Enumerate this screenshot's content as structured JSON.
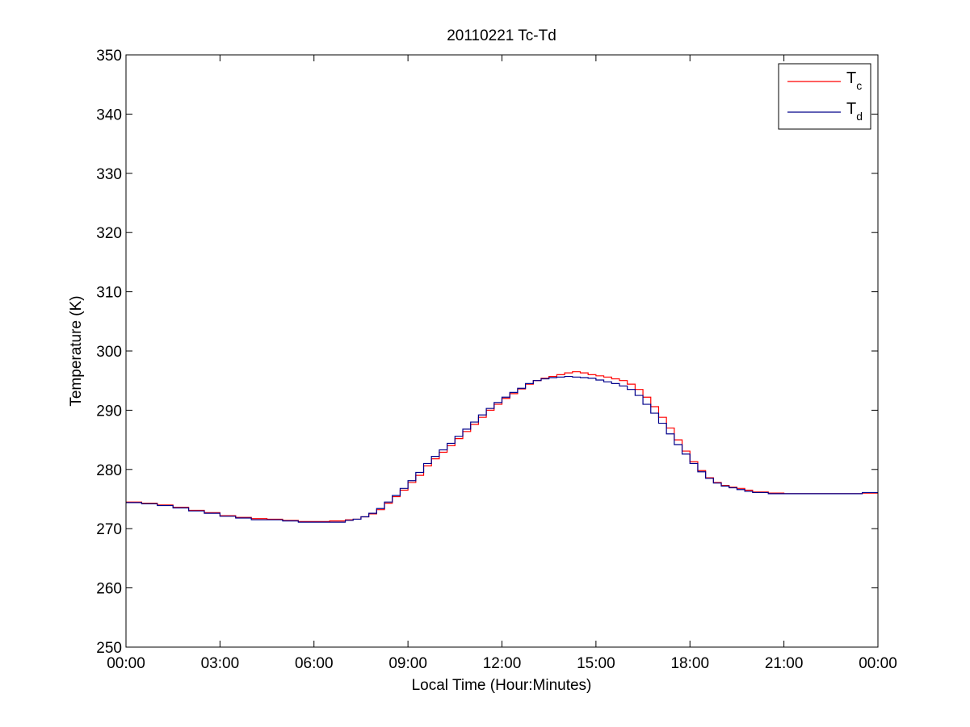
{
  "chart_data": {
    "type": "line",
    "title": "20110221 Tc-Td",
    "xlabel": "Local Time (Hour:Minutes)",
    "ylabel": "Temperature (K)",
    "xlim": [
      0,
      24
    ],
    "ylim": [
      250,
      350
    ],
    "x_ticks": [
      {
        "x": 0,
        "label": "00:00"
      },
      {
        "x": 3,
        "label": "03:00"
      },
      {
        "x": 6,
        "label": "06:00"
      },
      {
        "x": 9,
        "label": "09:00"
      },
      {
        "x": 12,
        "label": "12:00"
      },
      {
        "x": 15,
        "label": "15:00"
      },
      {
        "x": 18,
        "label": "18:00"
      },
      {
        "x": 21,
        "label": "21:00"
      },
      {
        "x": 24,
        "label": "00:00"
      }
    ],
    "y_ticks": [
      250,
      260,
      270,
      280,
      290,
      300,
      310,
      320,
      330,
      340,
      350
    ],
    "grid": false,
    "legend": {
      "placement": "top-right",
      "entries": [
        {
          "main": "T",
          "sub": "c",
          "color": "#ff0000"
        },
        {
          "main": "T",
          "sub": "d",
          "color": "#00008b"
        }
      ]
    },
    "series": [
      {
        "color": "#ff0000",
        "x": [
          0,
          0.5,
          1,
          1.5,
          2,
          2.5,
          3,
          3.5,
          4,
          4.5,
          5,
          5.5,
          6,
          6.5,
          7,
          7.25,
          7.5,
          7.75,
          8,
          8.25,
          8.5,
          8.75,
          9,
          9.25,
          9.5,
          9.75,
          10,
          10.25,
          10.5,
          10.75,
          11,
          11.25,
          11.5,
          11.75,
          12,
          12.25,
          12.5,
          12.75,
          13,
          13.25,
          13.5,
          13.75,
          14,
          14.25,
          14.5,
          14.75,
          15,
          15.25,
          15.5,
          15.75,
          16,
          16.25,
          16.5,
          16.75,
          17,
          17.25,
          17.5,
          17.75,
          18,
          18.25,
          18.5,
          18.75,
          19,
          19.25,
          19.5,
          19.75,
          20,
          20.5,
          21,
          21.5,
          22,
          22.5,
          23,
          23.5,
          24
        ],
        "y": [
          274.5,
          274.3,
          274.0,
          273.6,
          273.1,
          272.7,
          272.2,
          271.9,
          271.7,
          271.6,
          271.4,
          271.2,
          271.2,
          271.3,
          271.5,
          271.6,
          272.0,
          272.5,
          273.2,
          274.3,
          275.4,
          276.5,
          277.8,
          279.0,
          280.6,
          281.8,
          282.9,
          284.0,
          285.2,
          286.4,
          287.6,
          288.8,
          290.0,
          291.0,
          292.0,
          292.8,
          293.6,
          294.4,
          295.0,
          295.4,
          295.7,
          296.0,
          296.3,
          296.5,
          296.3,
          296.0,
          295.8,
          295.6,
          295.3,
          295.0,
          294.4,
          293.5,
          292.2,
          290.6,
          288.8,
          287.0,
          285.0,
          283.1,
          281.3,
          279.8,
          278.6,
          277.8,
          277.3,
          277.0,
          276.8,
          276.5,
          276.2,
          276.0,
          275.9,
          275.9,
          275.9,
          275.9,
          275.9,
          276.0,
          276.0
        ]
      },
      {
        "color": "#00008b",
        "x": [
          0,
          0.5,
          1,
          1.5,
          2,
          2.5,
          3,
          3.5,
          4,
          4.5,
          5,
          5.5,
          6,
          6.5,
          7,
          7.25,
          7.5,
          7.75,
          8,
          8.25,
          8.5,
          8.75,
          9,
          9.25,
          9.5,
          9.75,
          10,
          10.25,
          10.5,
          10.75,
          11,
          11.25,
          11.5,
          11.75,
          12,
          12.25,
          12.5,
          12.75,
          13,
          13.25,
          13.5,
          13.75,
          14,
          14.25,
          14.5,
          14.75,
          15,
          15.25,
          15.5,
          15.75,
          16,
          16.25,
          16.5,
          16.75,
          17,
          17.25,
          17.5,
          17.75,
          18,
          18.25,
          18.5,
          18.75,
          19,
          19.25,
          19.5,
          19.75,
          20,
          20.5,
          21,
          21.5,
          22,
          22.5,
          23,
          23.5,
          24
        ],
        "y": [
          274.4,
          274.2,
          273.9,
          273.5,
          273.0,
          272.6,
          272.1,
          271.8,
          271.5,
          271.5,
          271.3,
          271.1,
          271.1,
          271.1,
          271.4,
          271.6,
          272.0,
          272.6,
          273.4,
          274.5,
          275.6,
          276.8,
          278.1,
          279.5,
          281.0,
          282.2,
          283.3,
          284.4,
          285.6,
          286.8,
          288.0,
          289.2,
          290.3,
          291.3,
          292.2,
          293.0,
          293.7,
          294.5,
          295.0,
          295.3,
          295.5,
          295.6,
          295.7,
          295.6,
          295.5,
          295.4,
          295.1,
          294.8,
          294.5,
          294.1,
          293.5,
          292.5,
          291.0,
          289.5,
          287.8,
          286.0,
          284.2,
          282.6,
          281.0,
          279.6,
          278.5,
          277.7,
          277.2,
          276.9,
          276.6,
          276.3,
          276.1,
          275.9,
          275.9,
          275.9,
          275.9,
          275.9,
          275.9,
          276.1,
          276.1
        ]
      }
    ]
  }
}
